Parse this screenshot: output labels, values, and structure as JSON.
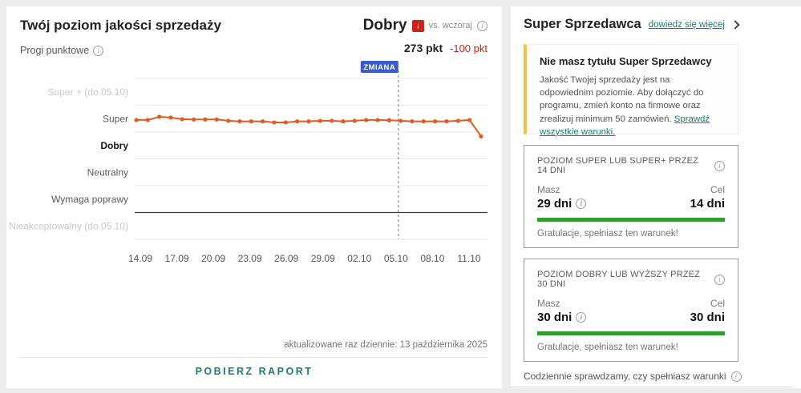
{
  "colors": {
    "accent_orange": "#e25b1e",
    "link_teal": "#1f7a70",
    "alert_red": "#c9241a",
    "success_green": "#2f9e2f",
    "badge_blue": "#3b59d1",
    "warn_yellow": "#f0c23e"
  },
  "left_panel": {
    "title": "Twój poziom jakości sprzedaży",
    "status": {
      "label": "Dobry",
      "compare": "vs. wczoraj"
    },
    "points": {
      "value": "273 pkt",
      "delta": "-100 pkt"
    },
    "thresholds_label": "Progi punktowe",
    "updated": "aktualizowane raz dziennie: 13 października 2025",
    "download_button": "POBIERZ RAPORT"
  },
  "chart_data": {
    "type": "line",
    "title": "Progi punktowe",
    "y_bands": [
      {
        "label": "Super + (do 05.10)",
        "muted": true
      },
      {
        "label": "Super"
      },
      {
        "label": "Dobry",
        "active": true
      },
      {
        "label": "Neutralny"
      },
      {
        "label": "Wymaga poprawy"
      },
      {
        "label": "Nieakceptowalny (do 05.10)",
        "muted": true
      }
    ],
    "dark_boundary_index": 4,
    "x_ticks": [
      "14.09",
      "17.09",
      "20.09",
      "23.09",
      "26.09",
      "29.09",
      "02.10",
      "05.10",
      "08.10",
      "11.10"
    ],
    "values": [
      4.45,
      4.45,
      4.57,
      4.54,
      4.48,
      4.47,
      4.47,
      4.47,
      4.42,
      4.4,
      4.4,
      4.4,
      4.36,
      4.36,
      4.4,
      4.4,
      4.42,
      4.42,
      4.4,
      4.42,
      4.45,
      4.45,
      4.44,
      4.42,
      4.4,
      4.4,
      4.4,
      4.4,
      4.42,
      4.45,
      3.84
    ],
    "ylim": [
      0,
      6
    ],
    "annotation": {
      "label": "ZMIANA",
      "x_frac": 0.76
    },
    "legend_position": "none",
    "grid": true
  },
  "right_panel": {
    "title": "Super Sprzedawca",
    "more_link": "dowiedz się więcej",
    "notice": {
      "title": "Nie masz tytułu Super Sprzedawcy",
      "body": "Jakość Twojej sprzedaży jest na odpowiednim poziomie. Aby dołączyć do programu, zmień konto na firmowe oraz zrealizuj minimum 50 zamówień.",
      "link": "Sprawdź wszystkie warunki."
    },
    "conditions": [
      {
        "title": "POZIOM SUPER LUB SUPER+ PRZEZ 14 DNI",
        "have_label": "Masz",
        "have_value": "29 dni",
        "goal_label": "Cel",
        "goal_value": "14 dni",
        "progress": 100,
        "note": "Gratulacje, spełniasz ten warunek!"
      },
      {
        "title": "POZIOM DOBRY LUB WYŻSZY PRZEZ 30 DNI",
        "have_label": "Masz",
        "have_value": "30 dni",
        "goal_label": "Cel",
        "goal_value": "30 dni",
        "progress": 100,
        "note": "Gratulacje, spełniasz ten warunek!"
      }
    ],
    "footer": "Codziennie sprawdzamy, czy spełniasz warunki"
  }
}
